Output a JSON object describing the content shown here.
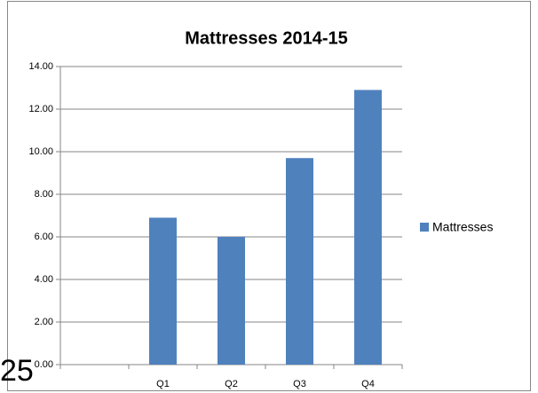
{
  "chart_data": {
    "type": "bar",
    "title": "Mattresses 2014-15",
    "categories": [
      null,
      "Q1",
      "Q2",
      "Q3",
      "Q4"
    ],
    "series": [
      {
        "name": "Mattresses",
        "color": "#4f81bd",
        "values": [
          null,
          6.9,
          6.0,
          9.7,
          12.9
        ]
      }
    ],
    "ylim": [
      0,
      14
    ],
    "yticks": [
      {
        "value": 0,
        "label": "0.00"
      },
      {
        "value": 2,
        "label": "2.00"
      },
      {
        "value": 4,
        "label": "4.00"
      },
      {
        "value": 6,
        "label": "6.00"
      },
      {
        "value": 8,
        "label": "8.00"
      },
      {
        "value": 10,
        "label": "10.00"
      },
      {
        "value": 12,
        "label": "12.00"
      },
      {
        "value": 14,
        "label": "14.00"
      }
    ],
    "grid": true,
    "legend": "right"
  },
  "page_number": "25"
}
